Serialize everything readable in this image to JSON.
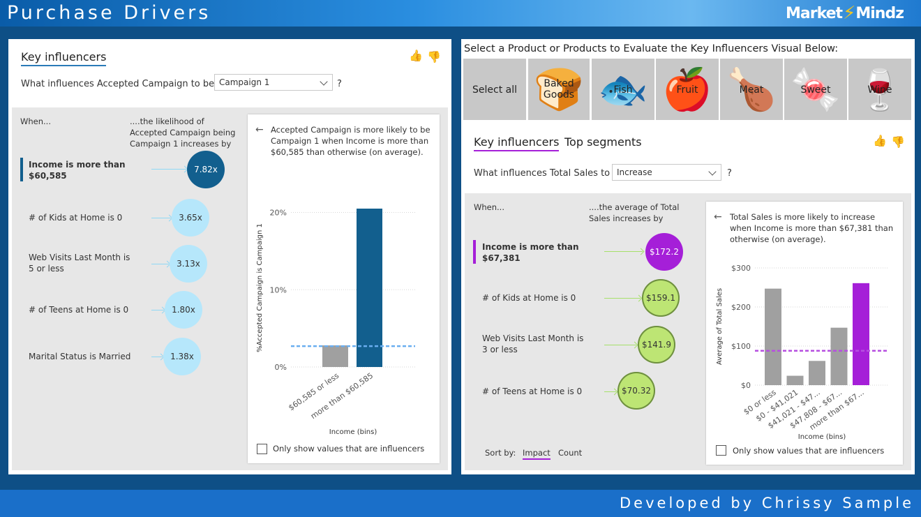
{
  "header": {
    "title": "Purchase Drivers",
    "logo_left": "Market",
    "logo_right": "Mindz"
  },
  "footer": {
    "credit": "Developed by Chrissy Sample"
  },
  "left_panel": {
    "tab_label": "Key influencers",
    "question_prefix": "What influences Accepted Campaign to be",
    "dropdown_value": "Campaign 1",
    "question_suffix": "?",
    "when_label": "When...",
    "likelihood_header": "....the likelihood of Accepted Campaign being Campaign 1 increases by",
    "influencers": [
      {
        "label": "Income is more than $60,585",
        "value": "7.82x"
      },
      {
        "label": "# of Kids at Home is 0",
        "value": "3.65x"
      },
      {
        "label": "Web Visits Last Month is 5 or less",
        "value": "3.13x"
      },
      {
        "label": "# of Teens at Home is 0",
        "value": "1.80x"
      },
      {
        "label": "Marital Status is Married",
        "value": "1.38x"
      }
    ],
    "detail_text": "Accepted Campaign is more likely to be Campaign 1 when Income is more than $60,585 than otherwise (on average).",
    "checkbox_label": "Only show values that are influencers",
    "colors": {
      "selected": "#125f8e",
      "bubble": "#b6e7fb",
      "bar_other": "#a0a0a0",
      "avg_line": "#6aaef0"
    }
  },
  "right_panel": {
    "slicer_title": "Select a Product or Products to Evaluate the Key Influencers Visual Below:",
    "products": [
      "Select all",
      "Baked Goods",
      "Fish",
      "Fruit",
      "Meat",
      "Sweet",
      "Wine"
    ],
    "tabs": [
      "Key influencers",
      "Top segments"
    ],
    "question_prefix": "What influences Total Sales to",
    "dropdown_value": "Increase",
    "question_suffix": "?",
    "when_label": "When...",
    "average_header": "....the average of Total Sales increases by",
    "influencers": [
      {
        "label": "Income is more than $67,381",
        "value": "$172.2"
      },
      {
        "label": "# of Kids at Home is 0",
        "value": "$159.1"
      },
      {
        "label": "Web Visits Last Month is 3 or less",
        "value": "$141.9"
      },
      {
        "label": "# of Teens at Home is 0",
        "value": "$70.32"
      }
    ],
    "sort_label": "Sort by:",
    "sort_options": [
      "Impact",
      "Count"
    ],
    "detail_text": "Total Sales is more likely to increase when Income is more than $67,381 than otherwise (on average).",
    "checkbox_label": "Only show values that are influencers",
    "colors": {
      "selected": "#a51fd8",
      "bubble": "#bde574",
      "bar_other": "#a0a0a0",
      "avg_line": "#b64fe0"
    }
  },
  "chart_data": [
    {
      "type": "bar",
      "categories": [
        "$60,585 or less",
        "more than $60,585"
      ],
      "values": [
        2.8,
        20.5
      ],
      "highlight_index": 1,
      "average_line": 2.7,
      "xlabel": "Income (bins)",
      "ylabel": "%Accepted Campaign is Campaign 1",
      "ylim": [
        0,
        20.5
      ],
      "yticks": [
        0,
        10,
        20
      ],
      "ytick_labels": [
        "0%",
        "10%",
        "20%"
      ],
      "grid": true
    },
    {
      "type": "bar",
      "categories": [
        "$0 or less",
        "$0 - $41,021",
        "$41,021 - $47...",
        "$47,808 - $67...",
        "more than $67..."
      ],
      "values": [
        247,
        24,
        62,
        147,
        261
      ],
      "highlight_index": 4,
      "average_line": 88,
      "xlabel": "Income (bins)",
      "ylabel": "Average of Total Sales",
      "ylim": [
        0,
        300
      ],
      "yticks": [
        0,
        100,
        200,
        300
      ],
      "ytick_labels": [
        "$0",
        "$100",
        "$200",
        "$300"
      ],
      "grid": true
    }
  ]
}
